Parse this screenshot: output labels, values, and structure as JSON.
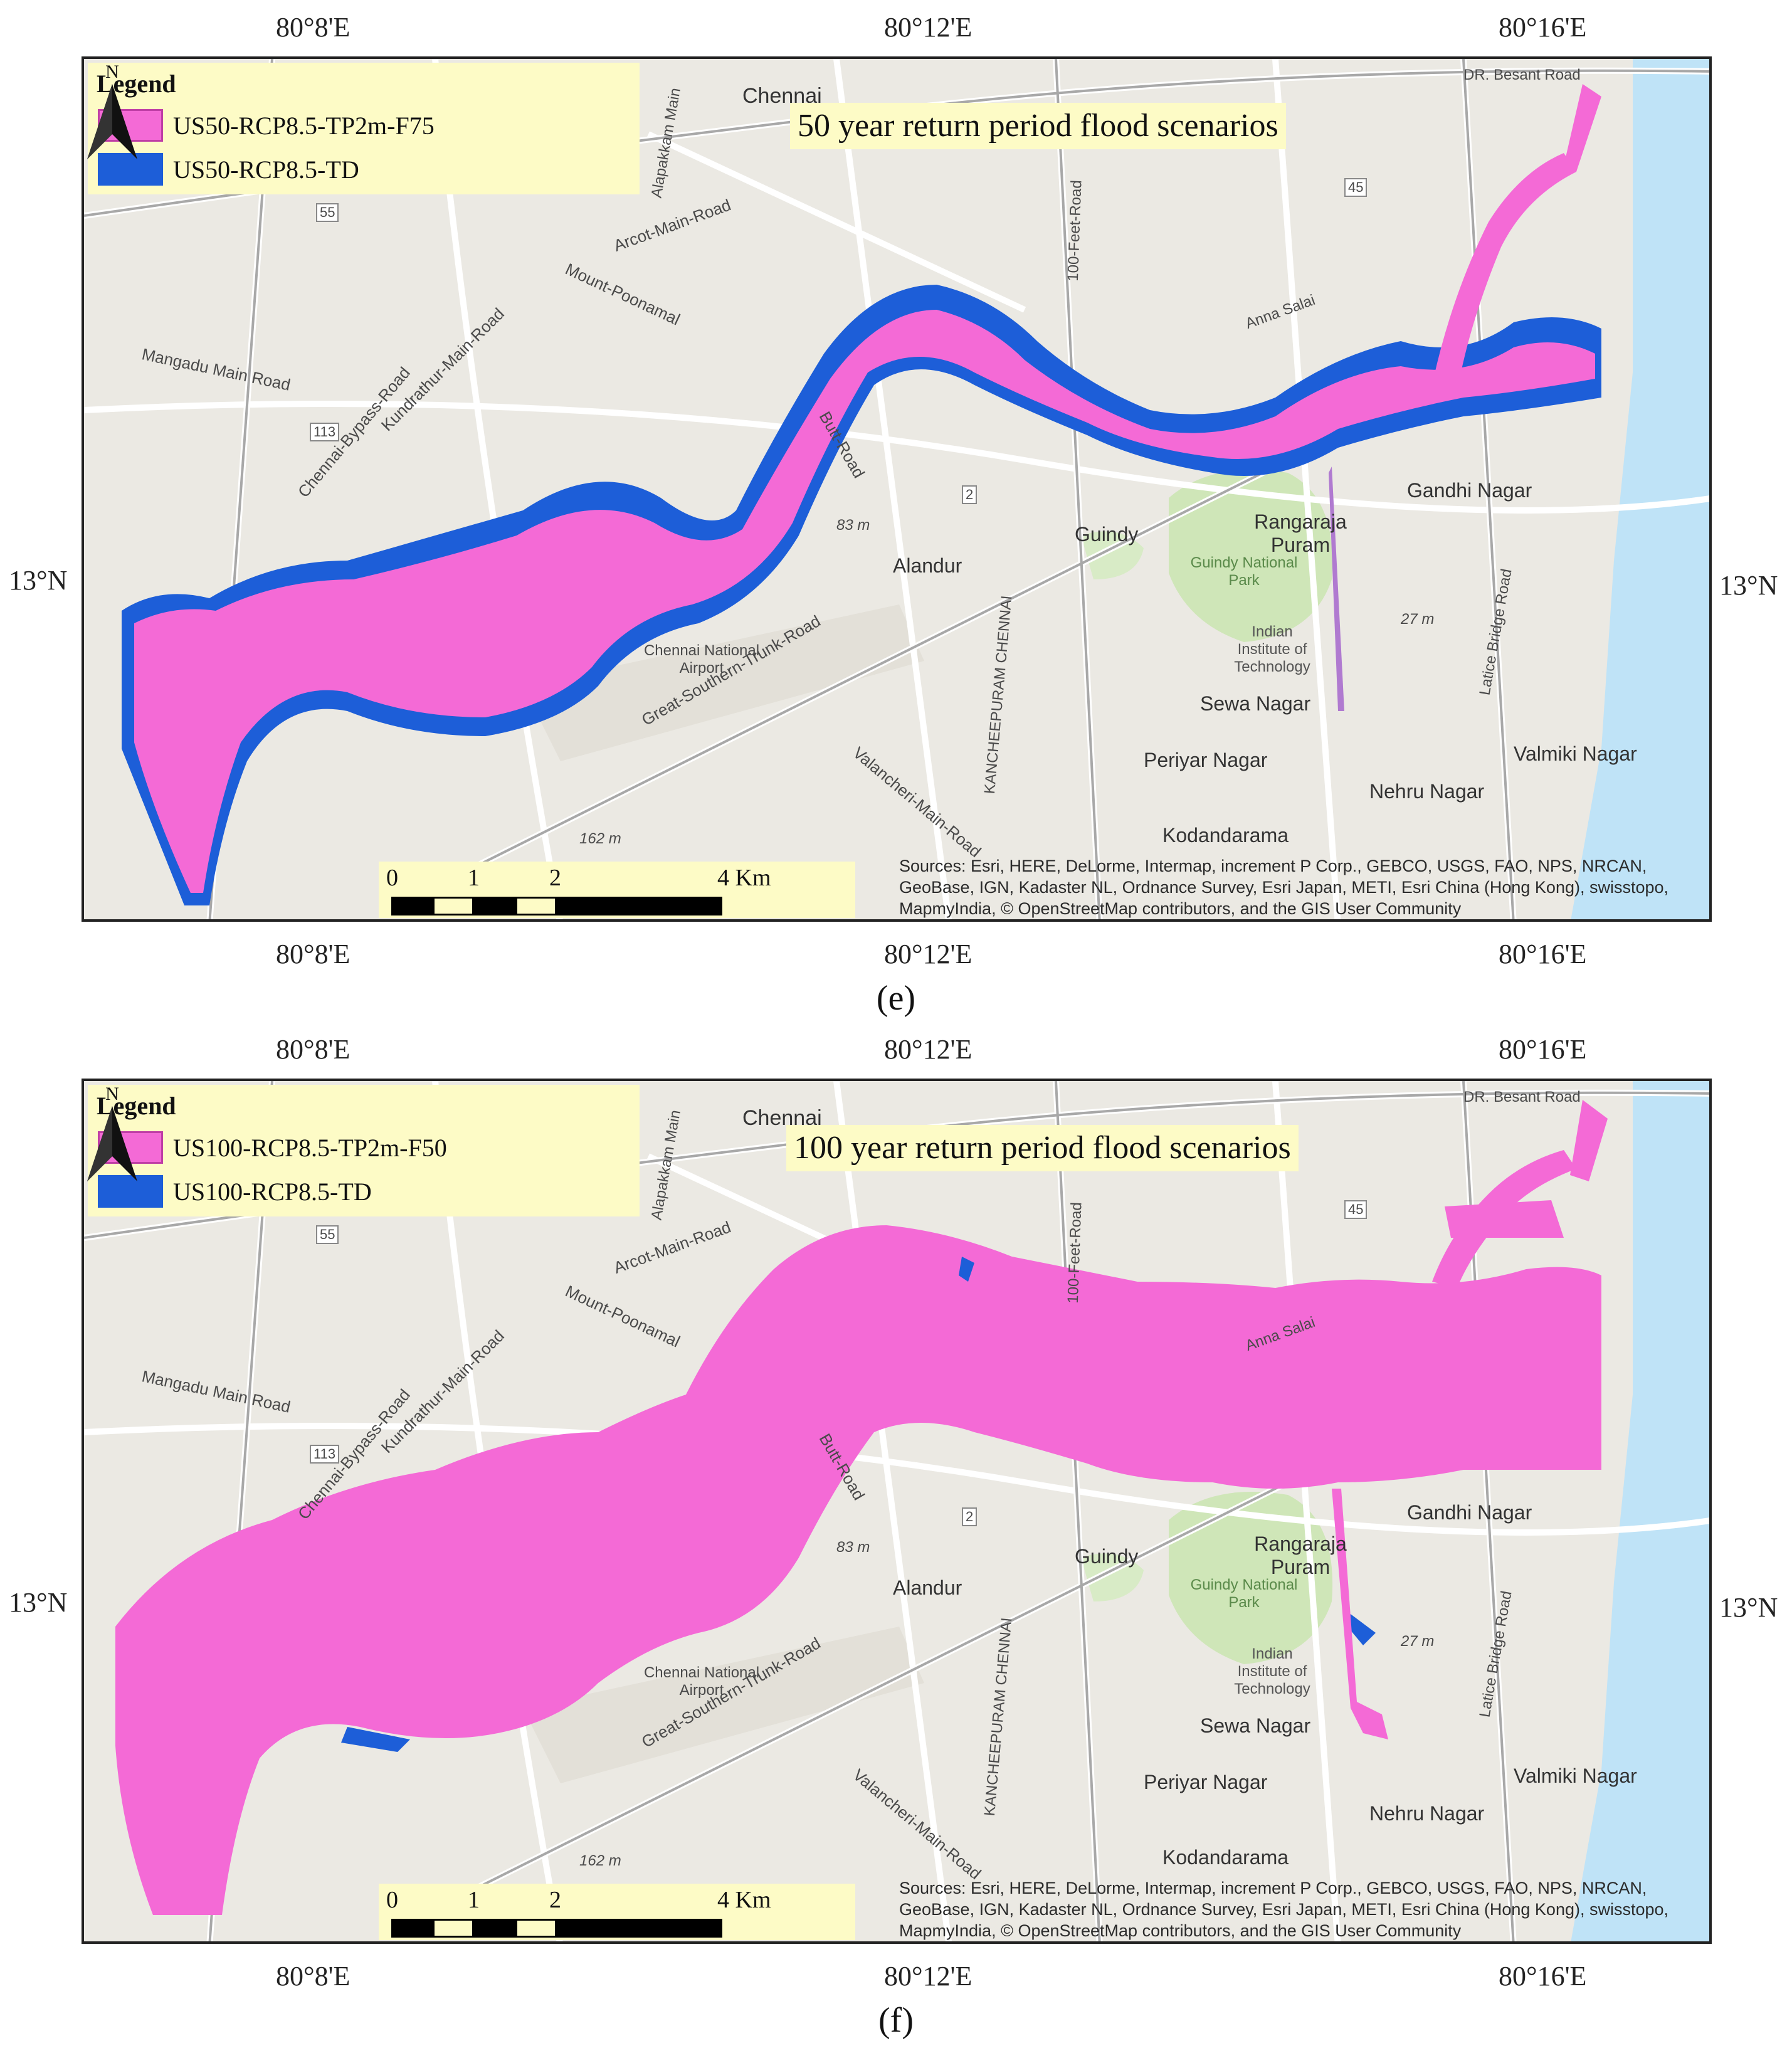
{
  "panels": [
    {
      "id": "e",
      "panel_label": "(e)",
      "scenario_title": "50 year return period flood scenarios",
      "legend": {
        "title": "Legend",
        "items": [
          {
            "label": "US50-RCP8.5-TP2m-F75",
            "color": "#f46ad6"
          },
          {
            "label": "US50-RCP8.5-TD",
            "color": "#1d5ed8"
          }
        ]
      },
      "axes": {
        "top_ticks": [
          "80°8'E",
          "80°12'E",
          "80°16'E"
        ],
        "bottom_ticks": [
          "80°8'E",
          "80°12'E",
          "80°16'E"
        ],
        "left_tick": "13°N",
        "right_tick": "13°N"
      },
      "north_arrow": "N",
      "scale": {
        "labels": [
          "0",
          "1",
          "2",
          "4 Km"
        ]
      },
      "sources": "Sources: Esri, HERE, DeLorme, Intermap, increment P Corp., GEBCO, USGS, FAO, NPS, NRCAN, GeoBase, IGN, Kadaster NL, Ordnance Survey, Esri Japan, METI, Esri China (Hong Kong), swisstopo, MapmyIndia, © OpenStreetMap contributors, and the GIS User Community",
      "places": {
        "chennai": "Chennai",
        "arcot": "Arcot-Main-Road",
        "mount": "Mount-Poonamal",
        "mangadu": "Mangadu Main Road",
        "bypass": "Chennai-Bypass-Road",
        "kundrathur": "Kundrathur-Main-Road",
        "butt": "Butt-Road",
        "alandur": "Alandur",
        "guindy": "Guindy",
        "rangaraja": "Rangaraja Puram",
        "park": "Guindy National Park",
        "iit": "Indian Institute of Technology",
        "sewa": "Sewa Nagar",
        "periyar": "Periyar Nagar",
        "nehru": "Nehru Nagar",
        "valmiki": "Valmiki Nagar",
        "kodandarama": "Kodandarama",
        "gandhi": "Gandhi Nagar",
        "gst": "Great-Southern-Trunk-Road",
        "valancheri": "Valancheri-Main-Road",
        "kancheepuram": "KANCHEEPURAM CHENNAI",
        "elev1": "83 m",
        "elev2": "162 m",
        "elev3": "27 m",
        "airport": "Chennai National Airport",
        "besant": "DR. Besant Road",
        "latice": "Latice Bridge Road",
        "feet": "100-Feet-Road",
        "anna": "Anna Salai",
        "r113": "113",
        "r55": "55",
        "r45": "45",
        "r2": "2",
        "alapakkam": "Alapakkam Main"
      }
    },
    {
      "id": "f",
      "panel_label": "(f)",
      "scenario_title": "100 year return period flood scenarios",
      "legend": {
        "title": "Legend",
        "items": [
          {
            "label": "US100-RCP8.5-TP2m-F50",
            "color": "#f46ad6"
          },
          {
            "label": "US100-RCP8.5-TD",
            "color": "#1d5ed8"
          }
        ]
      },
      "axes": {
        "top_ticks": [
          "80°8'E",
          "80°12'E",
          "80°16'E"
        ],
        "bottom_ticks": [
          "80°8'E",
          "80°12'E",
          "80°16'E"
        ],
        "left_tick": "13°N",
        "right_tick": "13°N"
      },
      "north_arrow": "N",
      "scale": {
        "labels": [
          "0",
          "1",
          "2",
          "4 Km"
        ]
      },
      "sources": "Sources: Esri, HERE, DeLorme, Intermap, increment P Corp., GEBCO, USGS, FAO, NPS, NRCAN, GeoBase, IGN, Kadaster NL, Ordnance Survey, Esri Japan, METI, Esri China (Hong Kong), swisstopo, MapmyIndia, © OpenStreetMap contributors, and the GIS User Community",
      "places": {
        "chennai": "Chennai",
        "arcot": "Arcot-Main-Road",
        "mount": "Mount-Poonamal",
        "mangadu": "Mangadu Main Road",
        "bypass": "Chennai-Bypass-Road",
        "kundrathur": "Kundrathur-Main-Road",
        "butt": "Butt-Road",
        "alandur": "Alandur",
        "guindy": "Guindy",
        "rangaraja": "Rangaraja Puram",
        "park": "Guindy National Park",
        "iit": "Indian Institute of Technology",
        "sewa": "Sewa Nagar",
        "periyar": "Periyar Nagar",
        "nehru": "Nehru Nagar",
        "valmiki": "Valmiki Nagar",
        "kodandarama": "Kodandarama",
        "gandhi": "Gandhi Nagar",
        "gst": "Great-Southern-Trunk-Road",
        "valancheri": "Valancheri-Main-Road",
        "kancheepuram": "KANCHEEPURAM CHENNAI",
        "elev1": "83 m",
        "elev2": "162 m",
        "elev3": "27 m",
        "airport": "Chennai National Airport",
        "besant": "DR. Besant Road",
        "latice": "Latice Bridge Road",
        "feet": "100-Feet-Road",
        "anna": "Anna Salai",
        "r113": "113",
        "r55": "55",
        "r45": "45",
        "r2": "2",
        "alapakkam": "Alapakkam Main"
      }
    }
  ],
  "colors": {
    "flood_pink": "#f46ad6",
    "flood_blue": "#1d5ed8",
    "sea": "#bfe3f7",
    "park": "#cfe6b8",
    "base": "#efede6",
    "legend_bg": "#fdfbc6"
  }
}
